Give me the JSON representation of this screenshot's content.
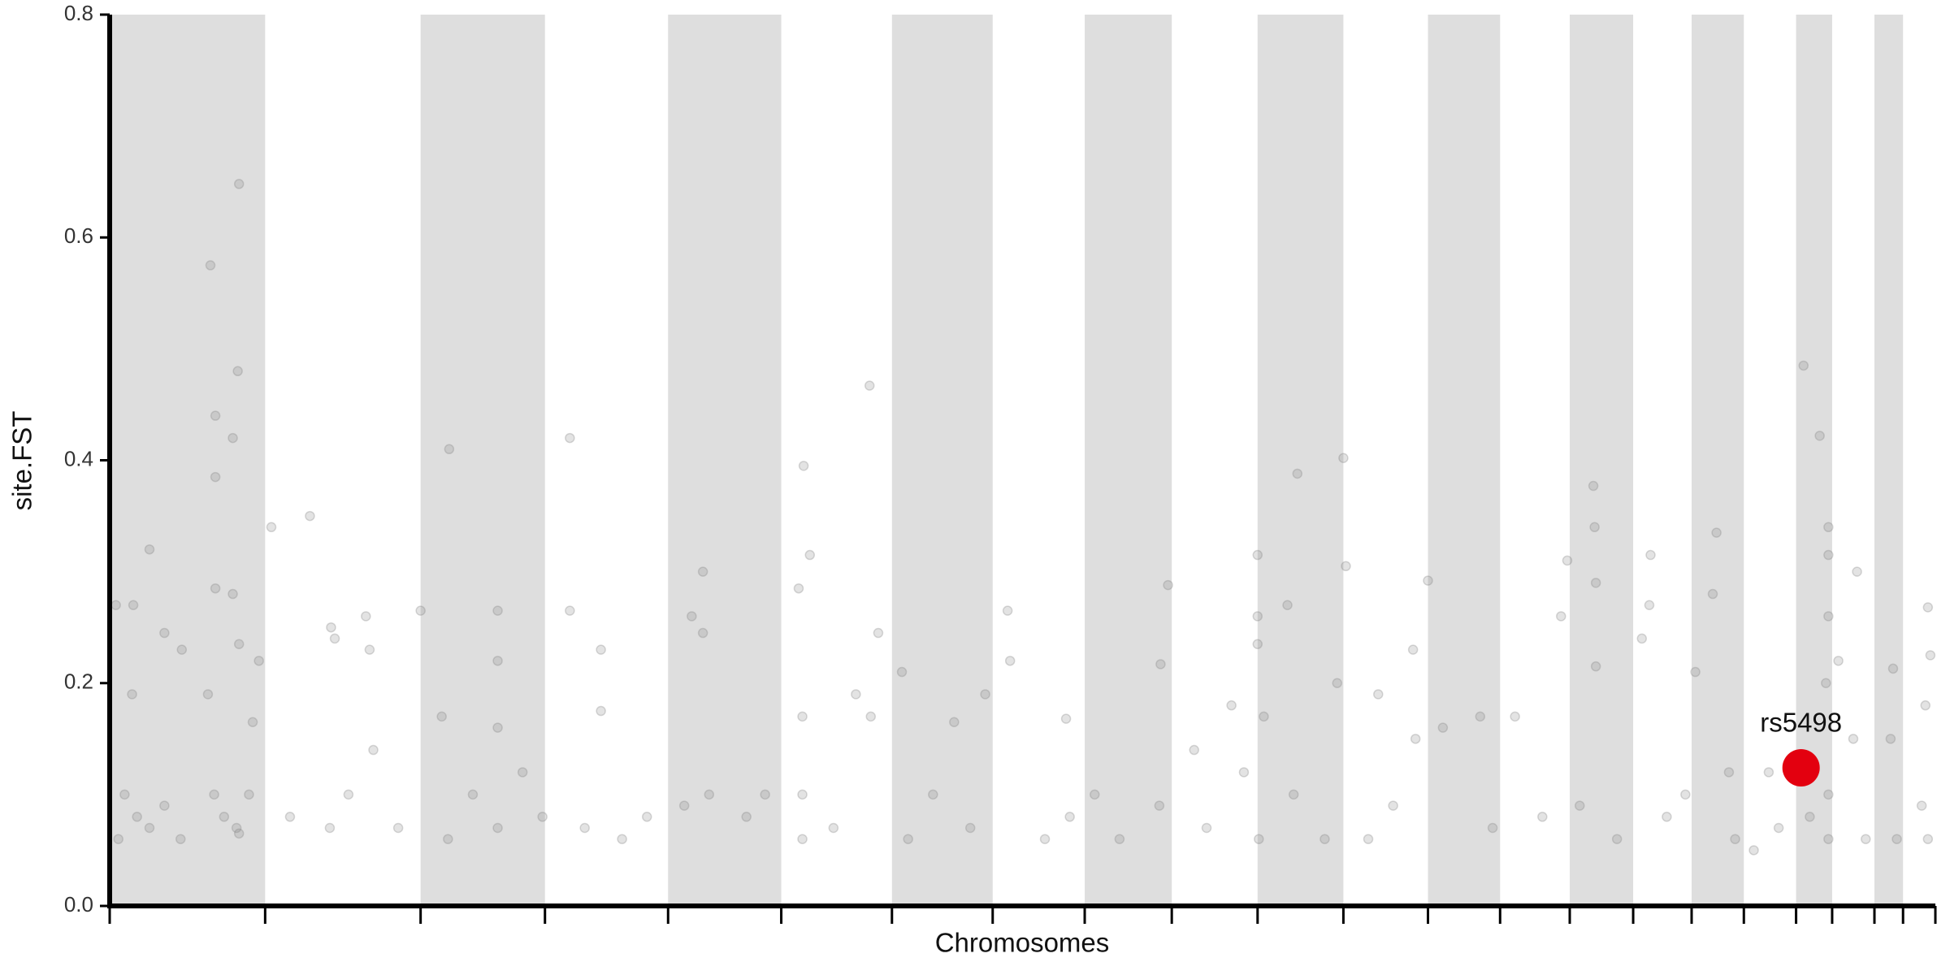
{
  "chart_data": {
    "type": "scatter",
    "xlabel": "Chromosomes",
    "ylabel": "site.FST",
    "xlim": [
      0,
      1468
    ],
    "ylim": [
      0,
      0.8
    ],
    "yticks": [
      {
        "value": 0,
        "label": "0.0"
      },
      0.2,
      0.4,
      0.6,
      0.8
    ],
    "xticks": [
      0,
      125,
      250,
      350,
      449,
      540,
      629,
      710,
      784,
      854,
      923,
      992,
      1060,
      1118,
      1174,
      1225,
      1272,
      1314,
      1356,
      1385,
      1419,
      1442,
      1468
    ],
    "alternate_shading": true,
    "band_color": "#dedede",
    "color": "#808080",
    "x": [
      5,
      18,
      19,
      32,
      44,
      58,
      81,
      85,
      85,
      85,
      99,
      103,
      104,
      99,
      104,
      115,
      120,
      7,
      12,
      22,
      32,
      44,
      57,
      79,
      84,
      92,
      102,
      104,
      112,
      130,
      161,
      178,
      181,
      206,
      209,
      177,
      192,
      212,
      232,
      145,
      250,
      267,
      273,
      312,
      312,
      312,
      272,
      292,
      312,
      332,
      348,
      370,
      370,
      395,
      395,
      382,
      412,
      432,
      468,
      477,
      477,
      462,
      482,
      512,
      527,
      554,
      558,
      563,
      557,
      557,
      557,
      582,
      600,
      611,
      618,
      612,
      637,
      679,
      642,
      662,
      692,
      704,
      722,
      724,
      752,
      769,
      772,
      851,
      845,
      792,
      812,
      844,
      872,
      902,
      912,
      882,
      923,
      923,
      923,
      947,
      955,
      987,
      928,
      924,
      952,
      977,
      992,
      994,
      1020,
      1032,
      1048,
      1050,
      1012,
      1060,
      1072,
      1102,
      1112,
      1130,
      1167,
      1172,
      1152,
      1193,
      1194,
      1195,
      1195,
      1212,
      1182,
      1239,
      1238,
      1232,
      1252,
      1267,
      1275,
      1292,
      1289,
      1302,
      1307,
      1334,
      1342,
      1322,
      1362,
      1375,
      1382,
      1382,
      1382,
      1380,
      1382,
      1382,
      1367,
      1390,
      1405,
      1402,
      1412,
      1434,
      1432,
      1437,
      1462,
      1464,
      1460,
      1457,
      1462
    ],
    "values": [
      0.27,
      0.19,
      0.27,
      0.32,
      0.245,
      0.23,
      0.575,
      0.44,
      0.385,
      0.285,
      0.42,
      0.48,
      0.648,
      0.28,
      0.235,
      0.165,
      0.22,
      0.06,
      0.1,
      0.08,
      0.07,
      0.09,
      0.06,
      0.19,
      0.1,
      0.08,
      0.07,
      0.065,
      0.1,
      0.34,
      0.35,
      0.25,
      0.24,
      0.26,
      0.23,
      0.07,
      0.1,
      0.14,
      0.07,
      0.08,
      0.265,
      0.17,
      0.41,
      0.265,
      0.22,
      0.16,
      0.06,
      0.1,
      0.07,
      0.12,
      0.08,
      0.42,
      0.265,
      0.23,
      0.175,
      0.07,
      0.06,
      0.08,
      0.26,
      0.3,
      0.245,
      0.09,
      0.1,
      0.08,
      0.1,
      0.285,
      0.395,
      0.315,
      0.17,
      0.1,
      0.06,
      0.07,
      0.19,
      0.467,
      0.245,
      0.17,
      0.21,
      0.165,
      0.06,
      0.1,
      0.07,
      0.19,
      0.265,
      0.22,
      0.06,
      0.168,
      0.08,
      0.288,
      0.217,
      0.1,
      0.06,
      0.09,
      0.14,
      0.18,
      0.12,
      0.07,
      0.315,
      0.26,
      0.235,
      0.27,
      0.388,
      0.2,
      0.17,
      0.06,
      0.1,
      0.06,
      0.402,
      0.305,
      0.19,
      0.09,
      0.23,
      0.15,
      0.06,
      0.292,
      0.16,
      0.17,
      0.07,
      0.17,
      0.26,
      0.31,
      0.08,
      0.377,
      0.34,
      0.29,
      0.215,
      0.06,
      0.09,
      0.315,
      0.27,
      0.24,
      0.08,
      0.1,
      0.21,
      0.335,
      0.28,
      0.12,
      0.06,
      0.12,
      0.07,
      0.05,
      0.485,
      0.422,
      0.34,
      0.315,
      0.26,
      0.2,
      0.1,
      0.06,
      0.08,
      0.22,
      0.3,
      0.15,
      0.06,
      0.213,
      0.15,
      0.06,
      0.268,
      0.225,
      0.18,
      0.09,
      0.06
    ],
    "highlight": {
      "label": "rs5498",
      "x": 1360,
      "y": 0.124,
      "color": "#e3000f"
    }
  }
}
